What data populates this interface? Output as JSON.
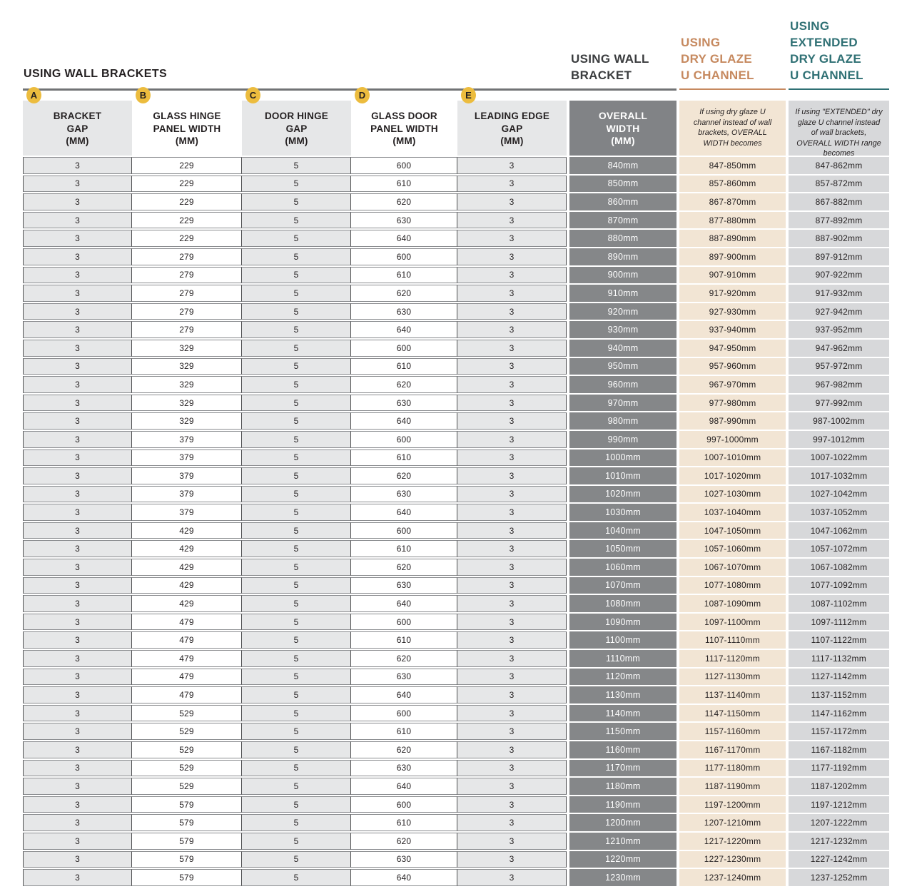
{
  "titles": {
    "left": "USING WALL BRACKETS",
    "wall_bracket": "USING WALL\nBRACKET",
    "dry_glaze": "USING\nDRY GLAZE\nU CHANNEL",
    "extended_dry_glaze": "USING\nEXTENDED\nDRY GLAZE\nU CHANNEL"
  },
  "colors": {
    "badge_yellow": "#ecbc3e",
    "accent_orange": "#c6895f",
    "accent_teal": "#2f7074",
    "overall_width_gray": "#858789",
    "dry_glaze_peach": "#f2e5d4",
    "extended_gray": "#d7d8da",
    "row_gray": "#e6e7e8"
  },
  "columns": [
    {
      "letter": "A",
      "label": "BRACKET\nGAP\n(MM)"
    },
    {
      "letter": "B",
      "label": "GLASS HINGE\nPANEL WIDTH\n(MM)"
    },
    {
      "letter": "C",
      "label": "DOOR HINGE\nGAP\n(MM)"
    },
    {
      "letter": "D",
      "label": "GLASS DOOR\nPANEL WIDTH\n(MM)"
    },
    {
      "letter": "E",
      "label": "LEADING EDGE\nGAP\n(MM)"
    },
    {
      "label": "OVERALL\nWIDTH\n(MM)"
    },
    {
      "label": "If using dry glaze U channel instead of wall brackets, OVERALL WIDTH becomes"
    },
    {
      "label": "If using \"EXTENDED\" dry glaze U channel instead of wall brackets, OVERALL WIDTH range becomes"
    }
  ],
  "table": {
    "rows": [
      [
        "3",
        "229",
        "5",
        "600",
        "3",
        "840mm",
        "847-850mm",
        "847-862mm"
      ],
      [
        "3",
        "229",
        "5",
        "610",
        "3",
        "850mm",
        "857-860mm",
        "857-872mm"
      ],
      [
        "3",
        "229",
        "5",
        "620",
        "3",
        "860mm",
        "867-870mm",
        "867-882mm"
      ],
      [
        "3",
        "229",
        "5",
        "630",
        "3",
        "870mm",
        "877-880mm",
        "877-892mm"
      ],
      [
        "3",
        "229",
        "5",
        "640",
        "3",
        "880mm",
        "887-890mm",
        "887-902mm"
      ],
      [
        "3",
        "279",
        "5",
        "600",
        "3",
        "890mm",
        "897-900mm",
        "897-912mm"
      ],
      [
        "3",
        "279",
        "5",
        "610",
        "3",
        "900mm",
        "907-910mm",
        "907-922mm"
      ],
      [
        "3",
        "279",
        "5",
        "620",
        "3",
        "910mm",
        "917-920mm",
        "917-932mm"
      ],
      [
        "3",
        "279",
        "5",
        "630",
        "3",
        "920mm",
        "927-930mm",
        "927-942mm"
      ],
      [
        "3",
        "279",
        "5",
        "640",
        "3",
        "930mm",
        "937-940mm",
        "937-952mm"
      ],
      [
        "3",
        "329",
        "5",
        "600",
        "3",
        "940mm",
        "947-950mm",
        "947-962mm"
      ],
      [
        "3",
        "329",
        "5",
        "610",
        "3",
        "950mm",
        "957-960mm",
        "957-972mm"
      ],
      [
        "3",
        "329",
        "5",
        "620",
        "3",
        "960mm",
        "967-970mm",
        "967-982mm"
      ],
      [
        "3",
        "329",
        "5",
        "630",
        "3",
        "970mm",
        "977-980mm",
        "977-992mm"
      ],
      [
        "3",
        "329",
        "5",
        "640",
        "3",
        "980mm",
        "987-990mm",
        "987-1002mm"
      ],
      [
        "3",
        "379",
        "5",
        "600",
        "3",
        "990mm",
        "997-1000mm",
        "997-1012mm"
      ],
      [
        "3",
        "379",
        "5",
        "610",
        "3",
        "1000mm",
        "1007-1010mm",
        "1007-1022mm"
      ],
      [
        "3",
        "379",
        "5",
        "620",
        "3",
        "1010mm",
        "1017-1020mm",
        "1017-1032mm"
      ],
      [
        "3",
        "379",
        "5",
        "630",
        "3",
        "1020mm",
        "1027-1030mm",
        "1027-1042mm"
      ],
      [
        "3",
        "379",
        "5",
        "640",
        "3",
        "1030mm",
        "1037-1040mm",
        "1037-1052mm"
      ],
      [
        "3",
        "429",
        "5",
        "600",
        "3",
        "1040mm",
        "1047-1050mm",
        "1047-1062mm"
      ],
      [
        "3",
        "429",
        "5",
        "610",
        "3",
        "1050mm",
        "1057-1060mm",
        "1057-1072mm"
      ],
      [
        "3",
        "429",
        "5",
        "620",
        "3",
        "1060mm",
        "1067-1070mm",
        "1067-1082mm"
      ],
      [
        "3",
        "429",
        "5",
        "630",
        "3",
        "1070mm",
        "1077-1080mm",
        "1077-1092mm"
      ],
      [
        "3",
        "429",
        "5",
        "640",
        "3",
        "1080mm",
        "1087-1090mm",
        "1087-1102mm"
      ],
      [
        "3",
        "479",
        "5",
        "600",
        "3",
        "1090mm",
        "1097-1100mm",
        "1097-1112mm"
      ],
      [
        "3",
        "479",
        "5",
        "610",
        "3",
        "1100mm",
        "1107-1110mm",
        "1107-1122mm"
      ],
      [
        "3",
        "479",
        "5",
        "620",
        "3",
        "1110mm",
        "1117-1120mm",
        "1117-1132mm"
      ],
      [
        "3",
        "479",
        "5",
        "630",
        "3",
        "1120mm",
        "1127-1130mm",
        "1127-1142mm"
      ],
      [
        "3",
        "479",
        "5",
        "640",
        "3",
        "1130mm",
        "1137-1140mm",
        "1137-1152mm"
      ],
      [
        "3",
        "529",
        "5",
        "600",
        "3",
        "1140mm",
        "1147-1150mm",
        "1147-1162mm"
      ],
      [
        "3",
        "529",
        "5",
        "610",
        "3",
        "1150mm",
        "1157-1160mm",
        "1157-1172mm"
      ],
      [
        "3",
        "529",
        "5",
        "620",
        "3",
        "1160mm",
        "1167-1170mm",
        "1167-1182mm"
      ],
      [
        "3",
        "529",
        "5",
        "630",
        "3",
        "1170mm",
        "1177-1180mm",
        "1177-1192mm"
      ],
      [
        "3",
        "529",
        "5",
        "640",
        "3",
        "1180mm",
        "1187-1190mm",
        "1187-1202mm"
      ],
      [
        "3",
        "579",
        "5",
        "600",
        "3",
        "1190mm",
        "1197-1200mm",
        "1197-1212mm"
      ],
      [
        "3",
        "579",
        "5",
        "610",
        "3",
        "1200mm",
        "1207-1210mm",
        "1207-1222mm"
      ],
      [
        "3",
        "579",
        "5",
        "620",
        "3",
        "1210mm",
        "1217-1220mm",
        "1217-1232mm"
      ],
      [
        "3",
        "579",
        "5",
        "630",
        "3",
        "1220mm",
        "1227-1230mm",
        "1227-1242mm"
      ],
      [
        "3",
        "579",
        "5",
        "640",
        "3",
        "1230mm",
        "1237-1240mm",
        "1237-1252mm"
      ]
    ]
  }
}
